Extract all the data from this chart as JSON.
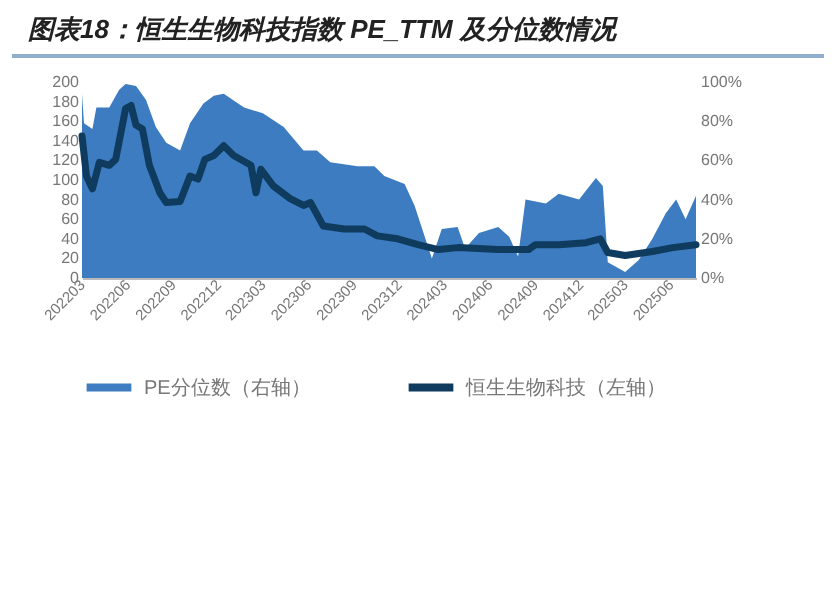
{
  "chart_data": {
    "type": "area",
    "title": "图表18：恒生生物科技指数 PE_TTM 及分位数情况",
    "legend": "bottom",
    "ylim": [
      0,
      200
    ],
    "yticks": [
      0,
      20,
      40,
      60,
      80,
      100,
      120,
      140,
      160,
      180,
      200
    ],
    "y2lim": [
      0,
      100
    ],
    "y2ticks": [
      {
        "value": 0,
        "label": "0%"
      },
      {
        "value": 20,
        "label": "20%"
      },
      {
        "value": 40,
        "label": "40%"
      },
      {
        "value": 60,
        "label": "60%"
      },
      {
        "value": 80,
        "label": "80%"
      },
      {
        "value": 100,
        "label": "100%"
      }
    ],
    "xlim": [
      "2022-03-01",
      "2025-07-22"
    ],
    "xticks": [
      {
        "value": "2022-03-01",
        "label": "202203"
      },
      {
        "value": "2022-06-01",
        "label": "202206"
      },
      {
        "value": "2022-09-01",
        "label": "202209"
      },
      {
        "value": "2022-12-01",
        "label": "202212"
      },
      {
        "value": "2023-03-01",
        "label": "202303"
      },
      {
        "value": "2023-06-01",
        "label": "202306"
      },
      {
        "value": "2023-09-01",
        "label": "202309"
      },
      {
        "value": "2023-12-01",
        "label": "202312"
      },
      {
        "value": "2024-03-01",
        "label": "202403"
      },
      {
        "value": "2024-06-01",
        "label": "202406"
      },
      {
        "value": "2024-09-01",
        "label": "202409"
      },
      {
        "value": "2024-12-01",
        "label": "202412"
      },
      {
        "value": "2025-03-01",
        "label": "202503"
      },
      {
        "value": "2025-06-01",
        "label": "202506"
      }
    ],
    "series": [
      {
        "name": "PE分位数（右轴）",
        "axis": "y2",
        "color": "#3d7cc0",
        "x": [
          "2022-03-01",
          "2022-03-05",
          "2022-03-22",
          "2022-03-30",
          "2022-04-25",
          "2022-05-15",
          "2022-05-28",
          "2022-06-18",
          "2022-07-08",
          "2022-07-28",
          "2022-08-18",
          "2022-09-15",
          "2022-10-05",
          "2022-11-01",
          "2022-11-22",
          "2022-12-12",
          "2023-01-22",
          "2023-03-01",
          "2023-04-12",
          "2023-05-22",
          "2023-06-18",
          "2023-07-15",
          "2023-09-08",
          "2023-10-12",
          "2023-11-01",
          "2023-12-12",
          "2024-01-01",
          "2024-02-05",
          "2024-02-25",
          "2024-03-28",
          "2024-04-12",
          "2024-05-10",
          "2024-06-18",
          "2024-07-10",
          "2024-07-28",
          "2024-08-12",
          "2024-09-22",
          "2024-10-18",
          "2024-11-28",
          "2025-01-01",
          "2025-01-15",
          "2025-01-25",
          "2025-03-01",
          "2025-03-28",
          "2025-04-25",
          "2025-05-22",
          "2025-06-12",
          "2025-07-01",
          "2025-07-22"
        ],
        "values": [
          94,
          79,
          76,
          87,
          87,
          96,
          99,
          98,
          91,
          77,
          69,
          65,
          79,
          89,
          93,
          94,
          87,
          84,
          77,
          65,
          65,
          59,
          57,
          57,
          52,
          48,
          37,
          10,
          25,
          26,
          15,
          23,
          26,
          21,
          11,
          40,
          38,
          43,
          40,
          51,
          47,
          8,
          3,
          9,
          20,
          33,
          40,
          30,
          42
        ]
      },
      {
        "name": "恒生生物科技（左轴）",
        "type": "line",
        "color": "#0e3b5e",
        "x": [
          "2022-03-01",
          "2022-03-10",
          "2022-03-22",
          "2022-04-05",
          "2022-04-25",
          "2022-05-08",
          "2022-05-28",
          "2022-06-08",
          "2022-06-18",
          "2022-07-01",
          "2022-07-15",
          "2022-08-05",
          "2022-08-18",
          "2022-09-15",
          "2022-10-05",
          "2022-10-21",
          "2022-11-04",
          "2022-11-22",
          "2022-12-12",
          "2023-01-01",
          "2023-02-05",
          "2023-02-15",
          "2023-02-25",
          "2023-03-22",
          "2023-04-25",
          "2023-05-22",
          "2023-06-05",
          "2023-07-01",
          "2023-08-12",
          "2023-09-22",
          "2023-10-18",
          "2023-11-28",
          "2024-01-08",
          "2024-02-18",
          "2024-03-28",
          "2024-06-18",
          "2024-08-18",
          "2024-09-01",
          "2024-10-18",
          "2024-12-12",
          "2025-01-10",
          "2025-01-25",
          "2025-03-01",
          "2025-04-25",
          "2025-06-05",
          "2025-07-22"
        ],
        "values": [
          145,
          104,
          91,
          118,
          115,
          121,
          173,
          176,
          156,
          152,
          115,
          87,
          77,
          78,
          104,
          101,
          121,
          125,
          135,
          125,
          115,
          87,
          111,
          94,
          81,
          74,
          77,
          53,
          50,
          50,
          43,
          40,
          34,
          29,
          31,
          29,
          29,
          34,
          34,
          36,
          40,
          26,
          23,
          27,
          31,
          34
        ]
      }
    ]
  }
}
